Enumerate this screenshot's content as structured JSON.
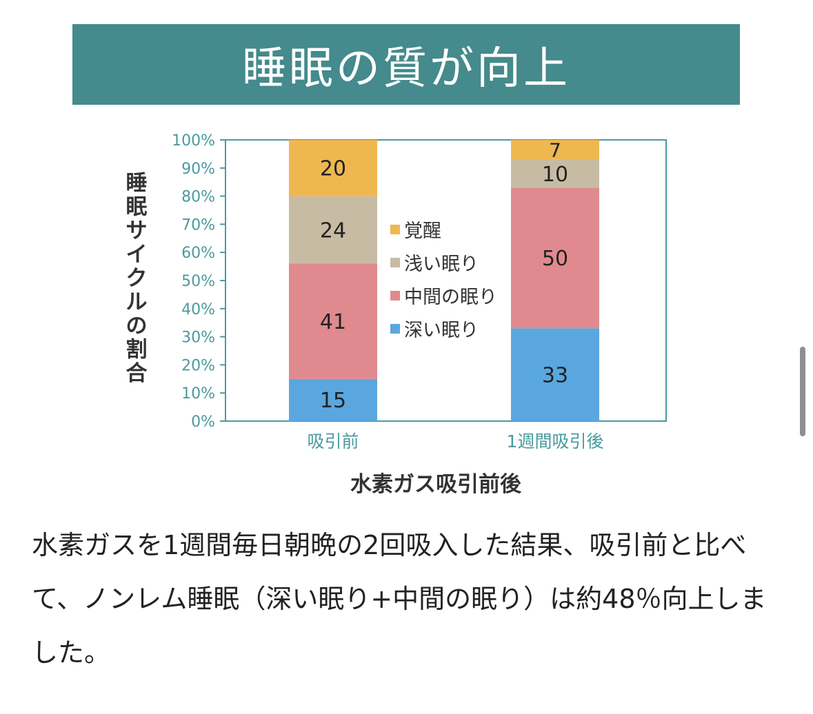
{
  "banner": {
    "title": "睡眠の質が向上"
  },
  "chart_data": {
    "type": "bar",
    "stacked": true,
    "xlabel": "水素ガス吸引前後",
    "ylabel": "睡眠サイクルの割合",
    "ylim": [
      0,
      100
    ],
    "yticks": [
      "0%",
      "10%",
      "20%",
      "30%",
      "40%",
      "50%",
      "60%",
      "70%",
      "80%",
      "90%",
      "100%"
    ],
    "categories": [
      "吸引前",
      "1週間吸引後"
    ],
    "series": [
      {
        "name": "深い眠り",
        "color": "#5aa7df",
        "values": [
          15,
          33
        ]
      },
      {
        "name": "中間の眠り",
        "color": "#e08a8f",
        "values": [
          41,
          50
        ]
      },
      {
        "name": "浅い眠り",
        "color": "#c7bca3",
        "values": [
          24,
          10
        ]
      },
      {
        "name": "覚醒",
        "color": "#efb750",
        "values": [
          20,
          7
        ]
      }
    ],
    "legend_order": [
      "覚醒",
      "浅い眠り",
      "中間の眠り",
      "深い眠り"
    ],
    "legend_position": "center",
    "axis_color": "#4a9aa0",
    "grid": false
  },
  "caption": "水素ガスを1週間毎日朝晩の2回吸入した結果、吸引前と比べて、ノンレム睡眠（深い眠り+中間の眠り）は約48％向上しました。"
}
